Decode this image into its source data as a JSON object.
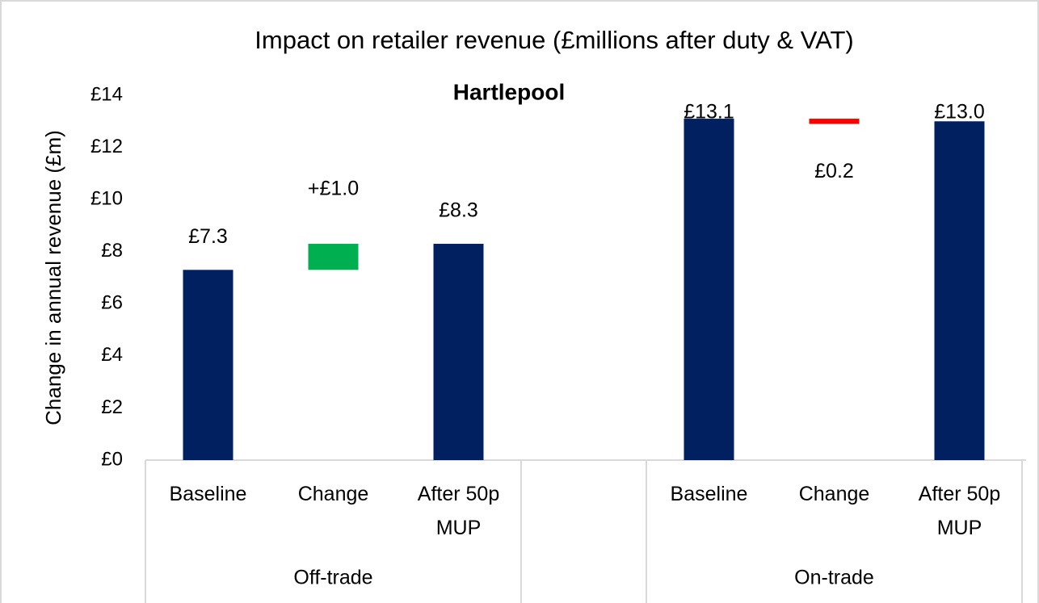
{
  "chart_data": {
    "type": "waterfall",
    "title": "Impact on retailer revenue (£millions after duty & VAT)",
    "subtitle": "Hartlepool",
    "y_label": "Change in annual revenue (£m)",
    "ylim": [
      0,
      14
    ],
    "yticks": [
      {
        "value": 0,
        "label": "£0"
      },
      {
        "value": 2,
        "label": "£2"
      },
      {
        "value": 4,
        "label": "£4"
      },
      {
        "value": 6,
        "label": "£6"
      },
      {
        "value": 8,
        "label": "£8"
      },
      {
        "value": 10,
        "label": "£10"
      },
      {
        "value": 12,
        "label": "£12"
      },
      {
        "value": 14,
        "label": "£14"
      }
    ],
    "colors": {
      "total": "#002060",
      "increase": "#00b050",
      "decrease": "#ff0000"
    },
    "groups": [
      {
        "name": "Off-trade",
        "categories": [
          "Baseline",
          "Change",
          "After 50p MUP"
        ],
        "measures": [
          "total",
          "change",
          "total"
        ],
        "values": [
          7.3,
          1.0,
          8.3
        ],
        "value_labels": [
          "£7.3",
          "+£1.0",
          "£8.3"
        ]
      },
      {
        "name": "On-trade",
        "categories": [
          "Baseline",
          "Change",
          "After 50p MUP"
        ],
        "measures": [
          "total",
          "change",
          "total"
        ],
        "values": [
          13.1,
          -0.2,
          13.0
        ],
        "value_labels": [
          "£13.1",
          "£0.2",
          "£13.0"
        ]
      }
    ]
  }
}
